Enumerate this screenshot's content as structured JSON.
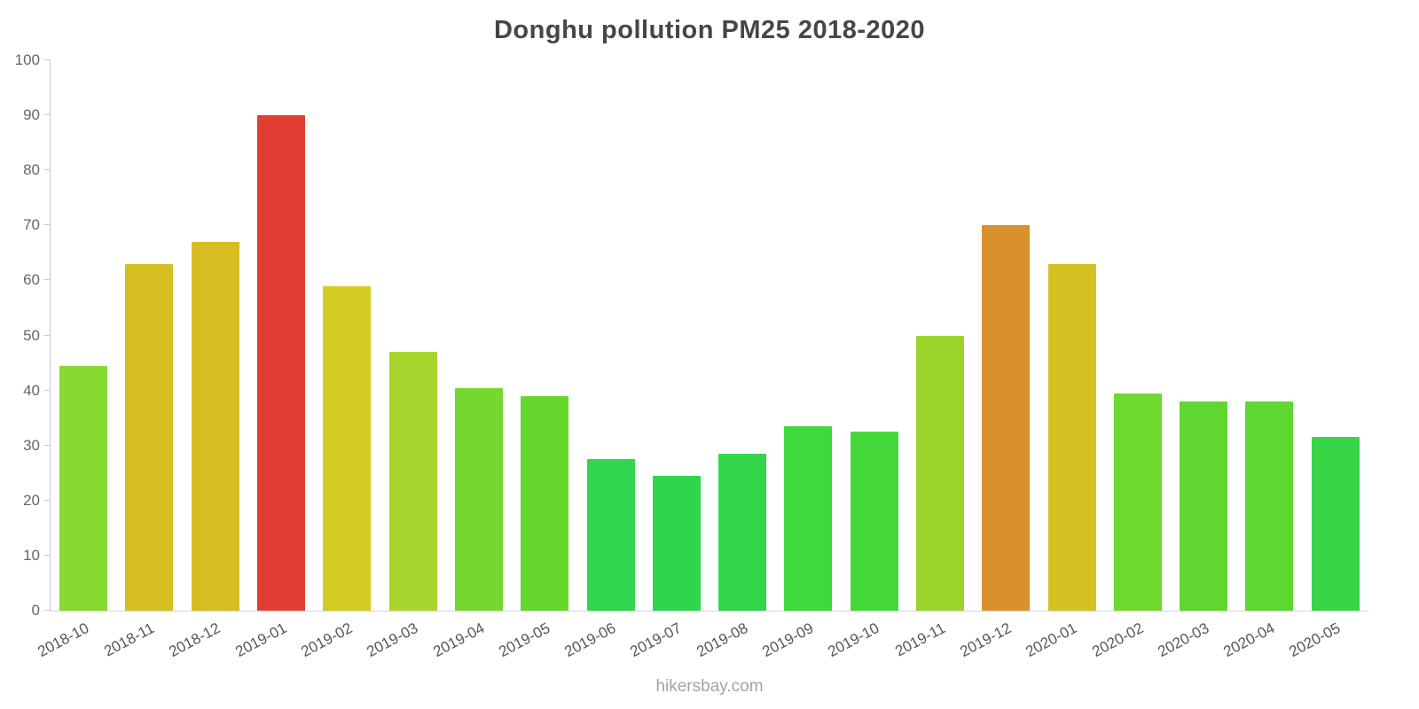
{
  "chart_data": {
    "type": "bar",
    "title": "Donghu pollution PM25 2018-2020",
    "categories": [
      "2018-10",
      "2018-11",
      "2018-12",
      "2019-01",
      "2019-02",
      "2019-03",
      "2019-04",
      "2019-05",
      "2019-06",
      "2019-07",
      "2019-08",
      "2019-09",
      "2019-10",
      "2019-11",
      "2019-12",
      "2020-01",
      "2020-02",
      "2020-03",
      "2020-04",
      "2020-05"
    ],
    "values": [
      44.5,
      63,
      67,
      90,
      59,
      47,
      40.5,
      39,
      27.5,
      24.5,
      28.5,
      33.5,
      32.5,
      50,
      70,
      63,
      39.5,
      38,
      38,
      31.5
    ],
    "colors": [
      "#86d92f",
      "#d6bd20",
      "#d6bd20",
      "#e23d32",
      "#d2cc24",
      "#a8d52b",
      "#74d82e",
      "#66d72d",
      "#30d64e",
      "#2ed64d",
      "#33d64a",
      "#3fd83d",
      "#45d83a",
      "#9bd52c",
      "#d9922b",
      "#d4c122",
      "#6ed92e",
      "#60d731",
      "#5ed733",
      "#38d646"
    ],
    "xlabel": "",
    "ylabel": "",
    "ylim": [
      0,
      100
    ],
    "ytick_step": 10,
    "grid": false,
    "legend": "none"
  },
  "footer": {
    "text": "hikersbay.com"
  }
}
